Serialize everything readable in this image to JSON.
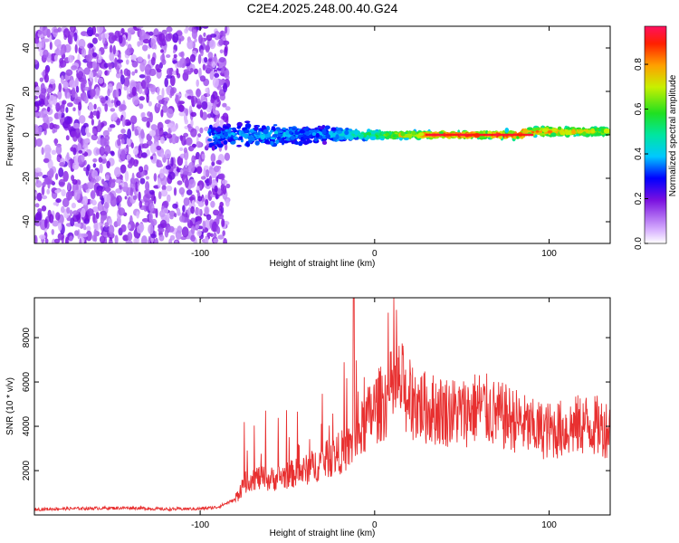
{
  "title": "C2E4.2025.248.00.40.G24",
  "chart_data": [
    {
      "type": "heatmap",
      "xlabel": "Height of straight line (km)",
      "ylabel": "Frequency (Hz)",
      "xlim": [
        -195,
        135
      ],
      "ylim": [
        -50,
        50
      ],
      "xticks": [
        -100,
        0,
        100
      ],
      "yticks": [
        -40,
        -20,
        0,
        20,
        40
      ],
      "colorbar": {
        "label": "Normalized spectral amplitude",
        "range": [
          0.0,
          0.97
        ],
        "ticks": [
          0.0,
          0.2,
          0.4,
          0.6,
          0.8
        ]
      },
      "description_points": [
        {
          "x": -195,
          "freq_spread": 50,
          "amplitude": 0.12
        },
        {
          "x": -90,
          "freq_spread": 8,
          "amplitude": 0.35
        },
        {
          "x": -60,
          "freq_spread": 7,
          "amplitude": 0.4
        },
        {
          "x": -30,
          "freq_spread": 6,
          "amplitude": 0.35
        },
        {
          "x": -10,
          "freq_spread": 3,
          "amplitude": 0.5
        },
        {
          "x": 20,
          "freq_spread": 2,
          "amplitude": 0.8
        },
        {
          "x": 60,
          "freq_spread": 2,
          "amplitude": 0.95
        },
        {
          "x": 100,
          "freq_spread": 3,
          "amplitude": 0.85
        },
        {
          "x": 135,
          "freq_spread": 3,
          "amplitude": 0.7
        }
      ]
    },
    {
      "type": "line",
      "xlabel": "Height of straight line (km)",
      "ylabel": "SNR (10 * v/v)",
      "xlim": [
        -195,
        135
      ],
      "ylim": [
        0,
        9800
      ],
      "xticks": [
        -100,
        0,
        100
      ],
      "yticks": [
        2000,
        4000,
        6000,
        8000
      ],
      "series": [
        {
          "name": "SNR",
          "color": "#e83030",
          "x": [
            -195,
            -180,
            -160,
            -140,
            -120,
            -100,
            -90,
            -80,
            -75,
            -70,
            -60,
            -50,
            -40,
            -30,
            -25,
            -20,
            -15,
            -10,
            -5,
            0,
            5,
            10,
            15,
            20,
            30,
            40,
            50,
            60,
            70,
            80,
            90,
            100,
            110,
            120,
            135
          ],
          "values": [
            250,
            280,
            300,
            320,
            260,
            280,
            350,
            700,
            1400,
            1700,
            1600,
            1800,
            2000,
            2400,
            2600,
            2800,
            3000,
            3400,
            4200,
            4800,
            5100,
            5600,
            5900,
            5200,
            4800,
            4700,
            4600,
            4900,
            4500,
            4300,
            3900,
            3800,
            3900,
            4100,
            3900
          ]
        }
      ]
    }
  ]
}
